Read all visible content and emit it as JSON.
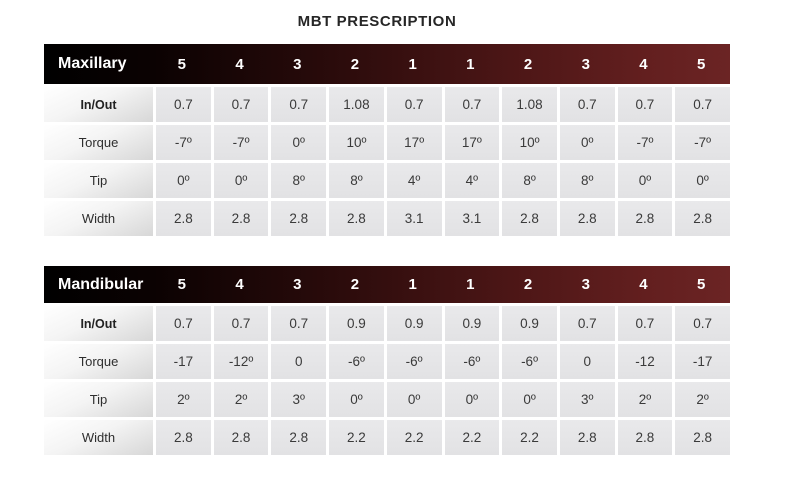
{
  "title": "MBT PRESCRIPTION",
  "colors": {
    "header_gradient_left": "#000000",
    "header_gradient_right": "#6b2424",
    "header_text": "#ffffff",
    "cell_background": "#e4e4e6",
    "label_gradient_bottom": "#d7d7d7",
    "cell_text": "#3a3a3a",
    "title_text": "#262626"
  },
  "chart_data": [
    {
      "type": "table",
      "title": "Maxillary",
      "columns": [
        "5",
        "4",
        "3",
        "2",
        "1",
        "1",
        "2",
        "3",
        "4",
        "5"
      ],
      "rows": [
        {
          "label": "In/Out",
          "emphasis": true,
          "values": [
            "0.7",
            "0.7",
            "0.7",
            "1.08",
            "0.7",
            "0.7",
            "1.08",
            "0.7",
            "0.7",
            "0.7"
          ]
        },
        {
          "label": "Torque",
          "emphasis": false,
          "values": [
            "-7º",
            "-7º",
            "0º",
            "10º",
            "17º",
            "17º",
            "10º",
            "0º",
            "-7º",
            "-7º"
          ]
        },
        {
          "label": "Tip",
          "emphasis": false,
          "values": [
            "0º",
            "0º",
            "8º",
            "8º",
            "4º",
            "4º",
            "8º",
            "8º",
            "0º",
            "0º"
          ]
        },
        {
          "label": "Width",
          "emphasis": false,
          "values": [
            "2.8",
            "2.8",
            "2.8",
            "2.8",
            "3.1",
            "3.1",
            "2.8",
            "2.8",
            "2.8",
            "2.8"
          ]
        }
      ]
    },
    {
      "type": "table",
      "title": "Mandibular",
      "columns": [
        "5",
        "4",
        "3",
        "2",
        "1",
        "1",
        "2",
        "3",
        "4",
        "5"
      ],
      "rows": [
        {
          "label": "In/Out",
          "emphasis": true,
          "values": [
            "0.7",
            "0.7",
            "0.7",
            "0.9",
            "0.9",
            "0.9",
            "0.9",
            "0.7",
            "0.7",
            "0.7"
          ]
        },
        {
          "label": "Torque",
          "emphasis": false,
          "values": [
            "-17",
            "-12º",
            "0",
            "-6º",
            "-6º",
            "-6º",
            "-6º",
            "0",
            "-12",
            "-17"
          ]
        },
        {
          "label": "Tip",
          "emphasis": false,
          "values": [
            "2º",
            "2º",
            "3º",
            "0º",
            "0º",
            "0º",
            "0º",
            "3º",
            "2º",
            "2º"
          ]
        },
        {
          "label": "Width",
          "emphasis": false,
          "values": [
            "2.8",
            "2.8",
            "2.8",
            "2.2",
            "2.2",
            "2.2",
            "2.2",
            "2.8",
            "2.8",
            "2.8"
          ]
        }
      ]
    }
  ]
}
